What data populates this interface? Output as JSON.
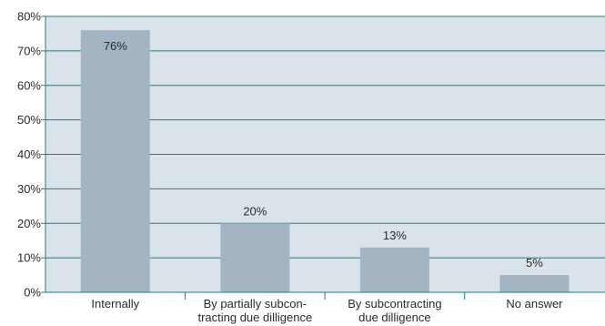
{
  "colors": {
    "plot_background": "#dbe3ea",
    "bar": "#a3b5c2",
    "gridline": "#1a7f8a",
    "axis": "#1a7f8a",
    "text": "#2b2b2b"
  },
  "chart_data": {
    "type": "bar",
    "title": "",
    "xlabel": "",
    "ylabel": "",
    "ylim": [
      0,
      80
    ],
    "yticks": [
      0,
      10,
      20,
      30,
      40,
      50,
      60,
      70,
      80
    ],
    "ytick_labels": [
      "0%",
      "10%",
      "20%",
      "30%",
      "40%",
      "50%",
      "60%",
      "70%",
      "80%"
    ],
    "grid": true,
    "categories": [
      [
        "Internally"
      ],
      [
        "By partially subcon-",
        "tracting due dilligence"
      ],
      [
        "By subcontracting",
        "due dilligence"
      ],
      [
        "No answer"
      ]
    ],
    "values": [
      76,
      20,
      13,
      5
    ],
    "data_labels": [
      "76%",
      "20%",
      "13%",
      "5%"
    ]
  }
}
